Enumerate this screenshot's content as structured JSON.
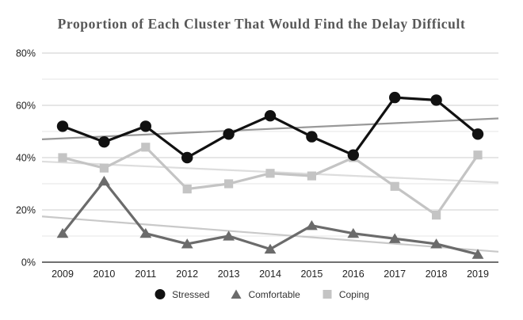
{
  "colors": {
    "background": "#ffffff",
    "title": "#575757",
    "tick_text": "#222222",
    "grid_major": "#cccccc",
    "grid_minor": "#e6e6e6",
    "axis": "#404040"
  },
  "chart_data": {
    "type": "line",
    "title": "Proportion of Each Cluster That Would Find the Delay Difficult",
    "xlabel": "",
    "ylabel": "",
    "x": [
      "2009",
      "2010",
      "2011",
      "2012",
      "2013",
      "2014",
      "2015",
      "2016",
      "2017",
      "2018",
      "2019"
    ],
    "ylim": [
      0,
      80
    ],
    "yticks": [
      {
        "value": 0,
        "label": "0%"
      },
      {
        "value": 20,
        "label": "20%"
      },
      {
        "value": 40,
        "label": "40%"
      },
      {
        "value": 60,
        "label": "60%"
      },
      {
        "value": 80,
        "label": "80%"
      }
    ],
    "grid_minor_step": 10,
    "grid": true,
    "legend_position": "bottom",
    "series": [
      {
        "name": "Stressed",
        "marker": "circle",
        "color": "#111111",
        "trend_color": "#999999",
        "values": [
          52,
          46,
          52,
          40,
          49,
          56,
          48,
          41,
          63,
          62,
          49
        ],
        "trend": {
          "start": 47,
          "end": 55
        }
      },
      {
        "name": "Comfortable",
        "marker": "triangle",
        "color": "#6b6b6b",
        "trend_color": "#c9c9c9",
        "values": [
          11,
          31,
          11,
          7,
          10,
          5,
          14,
          11,
          9,
          7,
          3
        ],
        "trend": {
          "start": 17.5,
          "end": 4
        }
      },
      {
        "name": "Coping",
        "marker": "square",
        "color": "#c4c4c4",
        "trend_color": "#dddddd",
        "values": [
          40,
          36,
          44,
          28,
          30,
          34,
          33,
          40,
          29,
          18,
          41
        ],
        "trend": {
          "start": 38.5,
          "end": 30.5
        }
      }
    ]
  }
}
